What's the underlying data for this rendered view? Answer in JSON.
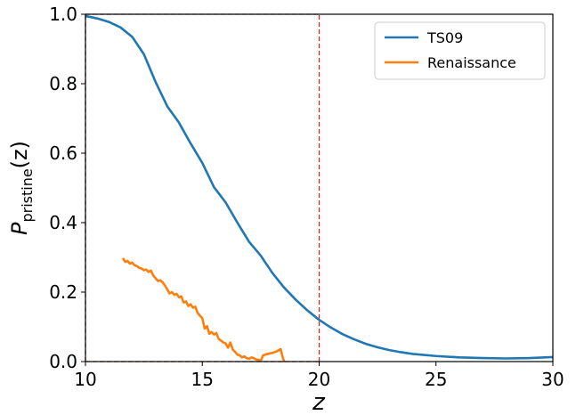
{
  "chart_data": {
    "type": "line",
    "xlabel": "z",
    "ylabel": {
      "main": "P",
      "subscript": "pristine",
      "suffix": "(z)"
    },
    "xlim": [
      10,
      30
    ],
    "ylim": [
      0,
      1
    ],
    "xticks": [
      "10",
      "15",
      "20",
      "25",
      "30"
    ],
    "yticks": [
      "0.0",
      "0.2",
      "0.4",
      "0.6",
      "0.8",
      "1.0"
    ],
    "grid": false,
    "legend_position": "top-right",
    "reference_lines": [
      {
        "orientation": "vertical",
        "x": 10,
        "y_range": [
          0,
          1
        ],
        "color": "#d62728",
        "style": "dashed"
      },
      {
        "orientation": "vertical",
        "x": 20,
        "y_range": [
          0,
          1
        ],
        "color": "#d62728",
        "style": "dashed"
      },
      {
        "orientation": "horizontal",
        "y": 1.0,
        "x_range": [
          10,
          20
        ],
        "color": "#d62728",
        "style": "dashed"
      },
      {
        "orientation": "horizontal",
        "y": 0.0,
        "x_range": [
          10,
          20
        ],
        "color": "#d62728",
        "style": "dashed"
      }
    ],
    "series": [
      {
        "name": "TS09",
        "color": "#1f77b4",
        "points": [
          [
            10.0,
            0.995
          ],
          [
            10.5,
            0.988
          ],
          [
            11.0,
            0.978
          ],
          [
            11.5,
            0.962
          ],
          [
            12.0,
            0.935
          ],
          [
            12.5,
            0.885
          ],
          [
            13.0,
            0.805
          ],
          [
            13.5,
            0.735
          ],
          [
            14.0,
            0.688
          ],
          [
            14.5,
            0.628
          ],
          [
            15.0,
            0.572
          ],
          [
            15.5,
            0.502
          ],
          [
            16.0,
            0.458
          ],
          [
            16.5,
            0.4
          ],
          [
            17.0,
            0.345
          ],
          [
            17.5,
            0.305
          ],
          [
            18.0,
            0.255
          ],
          [
            18.5,
            0.213
          ],
          [
            19.0,
            0.178
          ],
          [
            19.5,
            0.147
          ],
          [
            20.0,
            0.12
          ],
          [
            20.5,
            0.098
          ],
          [
            21.0,
            0.079
          ],
          [
            21.5,
            0.064
          ],
          [
            22.0,
            0.051
          ],
          [
            22.5,
            0.041
          ],
          [
            23.0,
            0.033
          ],
          [
            23.5,
            0.027
          ],
          [
            24.0,
            0.022
          ],
          [
            25.0,
            0.016
          ],
          [
            26.0,
            0.012
          ],
          [
            27.0,
            0.01
          ],
          [
            28.0,
            0.009
          ],
          [
            29.0,
            0.01
          ],
          [
            30.0,
            0.013
          ]
        ]
      },
      {
        "name": "Renaissance",
        "color": "#ff7f0e",
        "points": [
          [
            11.6,
            0.298
          ],
          [
            11.7,
            0.287
          ],
          [
            11.8,
            0.29
          ],
          [
            11.9,
            0.282
          ],
          [
            12.0,
            0.285
          ],
          [
            12.1,
            0.277
          ],
          [
            12.2,
            0.275
          ],
          [
            12.3,
            0.27
          ],
          [
            12.4,
            0.268
          ],
          [
            12.5,
            0.263
          ],
          [
            12.6,
            0.265
          ],
          [
            12.7,
            0.258
          ],
          [
            12.8,
            0.262
          ],
          [
            12.9,
            0.248
          ],
          [
            13.0,
            0.24
          ],
          [
            13.1,
            0.232
          ],
          [
            13.2,
            0.234
          ],
          [
            13.3,
            0.228
          ],
          [
            13.4,
            0.219
          ],
          [
            13.5,
            0.208
          ],
          [
            13.6,
            0.196
          ],
          [
            13.7,
            0.2
          ],
          [
            13.8,
            0.192
          ],
          [
            13.9,
            0.195
          ],
          [
            14.0,
            0.185
          ],
          [
            14.1,
            0.188
          ],
          [
            14.2,
            0.17
          ],
          [
            14.3,
            0.173
          ],
          [
            14.4,
            0.16
          ],
          [
            14.5,
            0.165
          ],
          [
            14.6,
            0.155
          ],
          [
            14.7,
            0.158
          ],
          [
            14.8,
            0.14
          ],
          [
            14.9,
            0.132
          ],
          [
            15.0,
            0.125
          ],
          [
            15.1,
            0.095
          ],
          [
            15.2,
            0.102
          ],
          [
            15.3,
            0.08
          ],
          [
            15.4,
            0.085
          ],
          [
            15.5,
            0.078
          ],
          [
            15.6,
            0.082
          ],
          [
            15.7,
            0.065
          ],
          [
            15.8,
            0.06
          ],
          [
            15.9,
            0.055
          ],
          [
            16.0,
            0.052
          ],
          [
            16.1,
            0.04
          ],
          [
            16.2,
            0.055
          ],
          [
            16.3,
            0.035
          ],
          [
            16.4,
            0.028
          ],
          [
            16.5,
            0.02
          ],
          [
            16.6,
            0.018
          ],
          [
            16.7,
            0.012
          ],
          [
            16.8,
            0.015
          ],
          [
            16.9,
            0.01
          ],
          [
            17.0,
            0.008
          ],
          [
            17.1,
            0.012
          ],
          [
            17.2,
            0.01
          ],
          [
            17.3,
            0.006
          ],
          [
            17.4,
            0.005
          ],
          [
            17.5,
            0.002
          ],
          [
            17.6,
            0.018
          ],
          [
            17.8,
            0.022
          ],
          [
            18.0,
            0.025
          ],
          [
            18.2,
            0.03
          ],
          [
            18.35,
            0.036
          ],
          [
            18.45,
            0.01
          ],
          [
            18.5,
            0.0
          ]
        ]
      }
    ]
  }
}
